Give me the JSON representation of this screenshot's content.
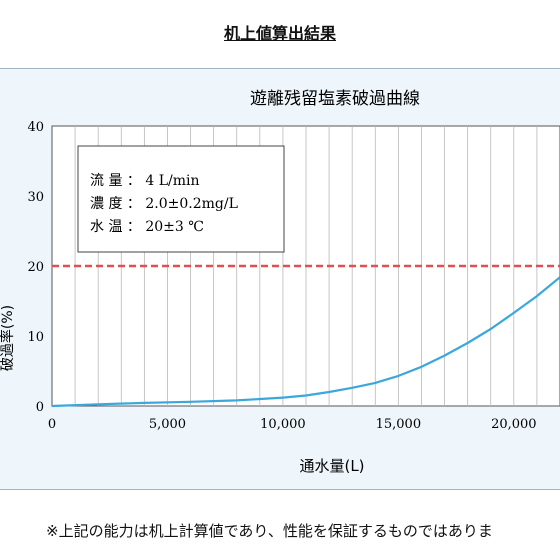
{
  "heading": "机上値算出結果",
  "note": "※上記の能力は机上計算値であり、性能を保証するものではありま",
  "chart_data": {
    "type": "line",
    "title": "遊離残留塩素破過曲線",
    "xlabel": "通水量(L)",
    "ylabel": "破過率(%)",
    "xlim": [
      0,
      22000
    ],
    "ylim": [
      0,
      40
    ],
    "xticks": [
      0,
      5000,
      10000,
      15000,
      20000
    ],
    "xtick_labels": [
      "0",
      "5,000",
      "10,000",
      "15,000",
      "20,000"
    ],
    "yticks": [
      0,
      10,
      20,
      30,
      40
    ],
    "ytick_labels": [
      "0",
      "10",
      "20",
      "30",
      "40"
    ],
    "grid": "vertical",
    "reference_line": {
      "y": 20,
      "color": "#e05050",
      "style": "dashed"
    },
    "series": [
      {
        "color": "#3aa7dd",
        "x": [
          0,
          2000,
          4000,
          6000,
          8000,
          10000,
          11000,
          12000,
          13000,
          14000,
          15000,
          16000,
          17000,
          18000,
          19000,
          20000,
          21000,
          22000
        ],
        "y": [
          0,
          0.25,
          0.45,
          0.6,
          0.8,
          1.2,
          1.5,
          2.0,
          2.6,
          3.3,
          4.3,
          5.6,
          7.2,
          9.0,
          11.0,
          13.3,
          15.7,
          18.4
        ]
      }
    ],
    "legend_box": {
      "lines": [
        "流 量 ： 4 L/min",
        "濃 度 ： 2.0±0.2mg/L",
        "水 温 ： 20±3 ℃"
      ]
    }
  }
}
